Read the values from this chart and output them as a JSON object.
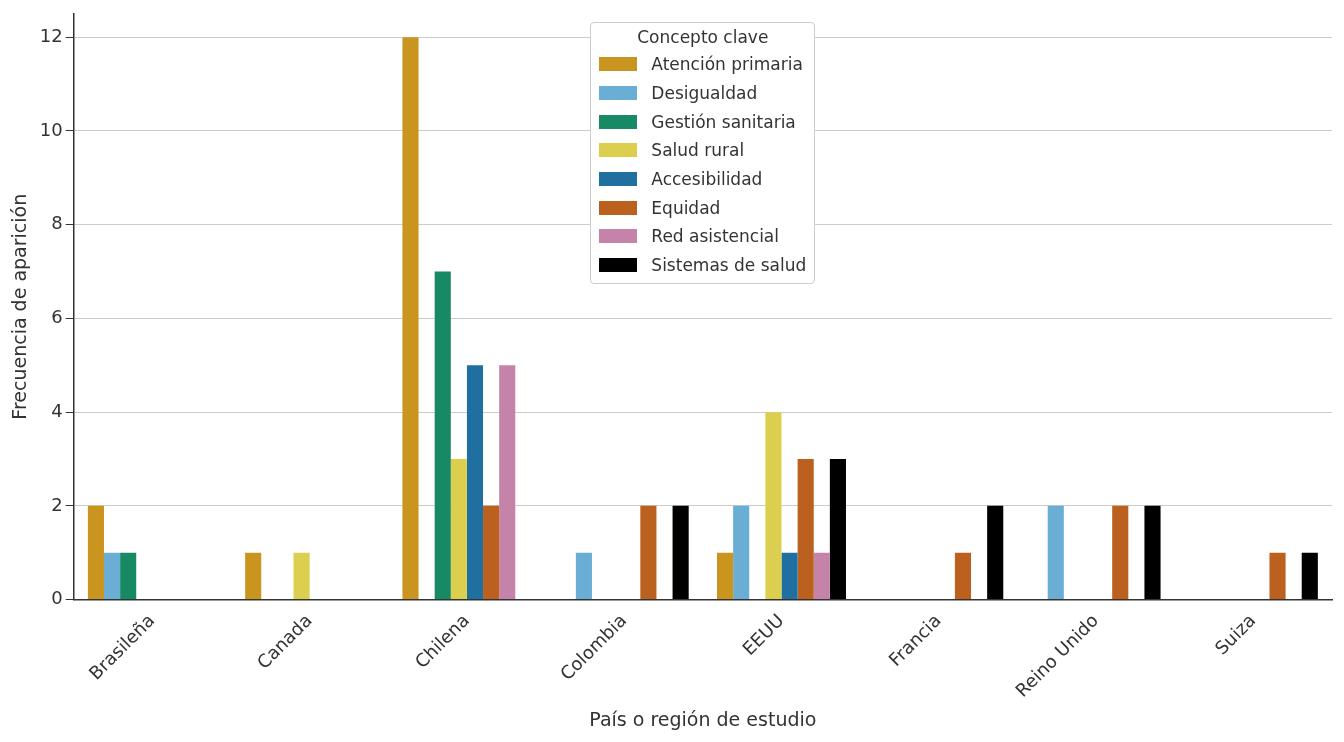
{
  "chart_data": {
    "type": "bar",
    "xlabel": "País o región de estudio",
    "ylabel": "Frecuencia de aparición",
    "legend_title": "Concepto clave",
    "legend": "top",
    "grid": "y",
    "categories": [
      "Brasileña",
      "Canada",
      "Chilena",
      "Colombia",
      "EEUU",
      "Francia",
      "Reino Unido",
      "Suiza"
    ],
    "ylim": [
      0,
      12.5
    ],
    "yticks": [
      0,
      2,
      4,
      6,
      8,
      10,
      12
    ],
    "series": [
      {
        "name": "Atención primaria",
        "color": "#c9951f",
        "values": [
          2,
          1,
          12,
          0,
          1,
          0,
          0,
          0
        ]
      },
      {
        "name": "Desigualdad",
        "color": "#6aaed6",
        "values": [
          1,
          0,
          0,
          1,
          2,
          0,
          2,
          0
        ]
      },
      {
        "name": "Gestión sanitaria",
        "color": "#178a65",
        "values": [
          1,
          0,
          7,
          0,
          0,
          0,
          0,
          0
        ]
      },
      {
        "name": "Salud rural",
        "color": "#dccf4f",
        "values": [
          0,
          1,
          3,
          0,
          4,
          0,
          0,
          0
        ]
      },
      {
        "name": "Accesibilidad",
        "color": "#1f6fa0",
        "values": [
          0,
          0,
          5,
          0,
          1,
          0,
          0,
          0
        ]
      },
      {
        "name": "Equidad",
        "color": "#bb601e",
        "values": [
          0,
          0,
          2,
          2,
          3,
          1,
          2,
          1
        ]
      },
      {
        "name": "Red asistencial",
        "color": "#c583a9",
        "values": [
          0,
          0,
          5,
          0,
          1,
          0,
          0,
          0
        ]
      },
      {
        "name": "Sistemas de salud",
        "color": "#000000",
        "values": [
          0,
          0,
          0,
          2,
          3,
          2,
          2,
          1
        ]
      }
    ]
  }
}
